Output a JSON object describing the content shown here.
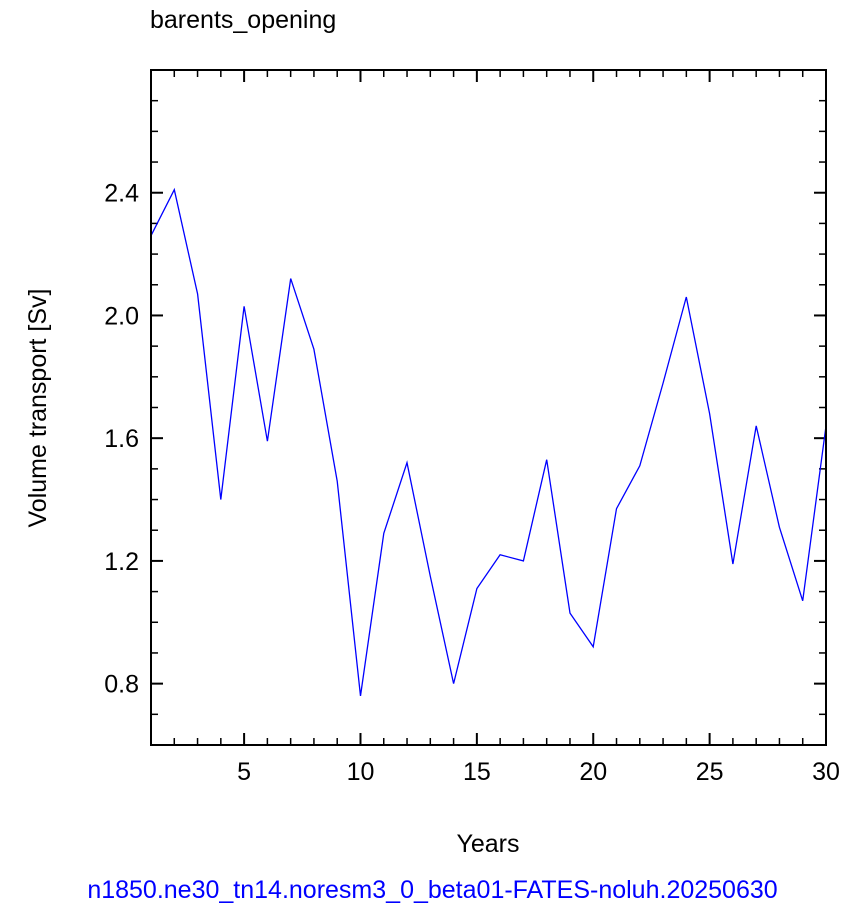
{
  "chart_data": {
    "type": "line",
    "title": "barents_opening",
    "xlabel": "Years",
    "ylabel": "Volume transport [Sv]",
    "xlim": [
      1,
      30
    ],
    "ylim": [
      0.6,
      2.8
    ],
    "xticks": [
      5,
      10,
      15,
      20,
      25,
      30
    ],
    "yticks": [
      0.8,
      1.2,
      1.6,
      2.0,
      2.4
    ],
    "ytick_labels": [
      "0.8",
      "1.2",
      "1.6",
      "2.0",
      "2.4"
    ],
    "series": [
      {
        "color": "#0000ff",
        "x": [
          1,
          2,
          3,
          4,
          5,
          6,
          7,
          8,
          9,
          10,
          11,
          12,
          13,
          14,
          15,
          16,
          17,
          18,
          19,
          20,
          21,
          22,
          23,
          24,
          25,
          26,
          27,
          28,
          29,
          30
        ],
        "values": [
          2.26,
          2.41,
          2.07,
          1.4,
          2.03,
          1.59,
          2.12,
          1.89,
          1.46,
          0.76,
          1.29,
          1.52,
          1.15,
          0.8,
          1.11,
          1.22,
          1.2,
          1.53,
          1.03,
          0.92,
          1.37,
          1.51,
          1.78,
          2.06,
          1.68,
          1.19,
          1.64,
          1.31,
          1.07,
          1.64
        ]
      }
    ]
  },
  "footer": {
    "caption": "n1850.ne30_tn14.noresm3_0_beta01-FATES-noluh.20250630"
  }
}
